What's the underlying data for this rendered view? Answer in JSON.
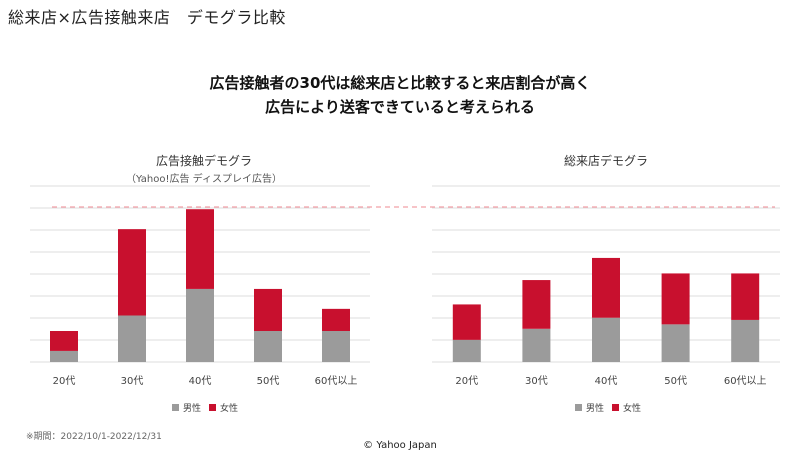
{
  "page": {
    "title": "総来店×広告接触来店　デモグラ比較",
    "headline": [
      "広告接触者の30代は総来店と比較すると来店割合が高く",
      "広告により送客できていると考えられる"
    ],
    "footnote": "※期間：2022/10/1-2022/12/31",
    "copyright": "© Yahoo Japan"
  },
  "colors": {
    "male": "#9b9b9b",
    "female": "#c8102e",
    "grid": "#dddddd",
    "reference": "#f2a0a8"
  },
  "chart_data": [
    {
      "type": "bar",
      "stacked": true,
      "title": "広告接触デモグラ",
      "subtitle": "（Yahoo!広告 ディスプレイ広告）",
      "categories": [
        "20代",
        "30代",
        "40代",
        "50代",
        "60代以上"
      ],
      "series": [
        {
          "name": "男性",
          "values": [
            5,
            21,
            33,
            14,
            14
          ]
        },
        {
          "name": "女性",
          "values": [
            9,
            39,
            36,
            19,
            10
          ]
        }
      ],
      "ylim": [
        0,
        70
      ],
      "grid": true,
      "reference_line": 70,
      "legend": "bottom"
    },
    {
      "type": "bar",
      "stacked": true,
      "title": "総来店デモグラ",
      "categories": [
        "20代",
        "30代",
        "40代",
        "50代",
        "60代以上"
      ],
      "series": [
        {
          "name": "男性",
          "values": [
            10,
            15,
            20,
            17,
            19
          ]
        },
        {
          "name": "女性",
          "values": [
            16,
            22,
            27,
            23,
            21
          ]
        }
      ],
      "ylim": [
        0,
        70
      ],
      "grid": true,
      "reference_line": 70,
      "legend": "bottom"
    }
  ]
}
